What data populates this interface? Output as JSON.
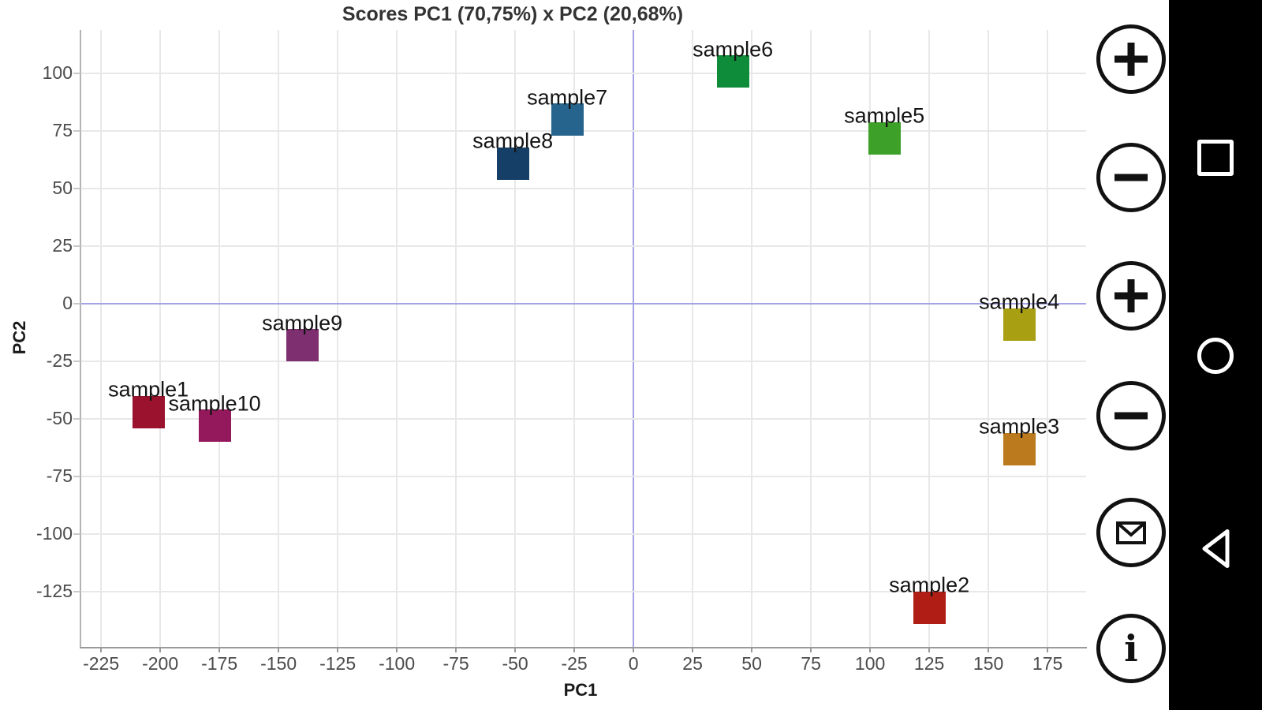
{
  "chart_data": {
    "type": "scatter",
    "title": "Scores PC1 (70,75%) x PC2 (20,68%)",
    "xlabel": "PC1",
    "ylabel": "PC2",
    "xlim": [
      -233.7,
      191.3
    ],
    "ylim": [
      -149,
      119
    ],
    "x_ticks": [
      -225,
      -200,
      -175,
      -150,
      -125,
      -100,
      -75,
      -50,
      -25,
      0,
      25,
      50,
      75,
      100,
      125,
      150,
      175
    ],
    "y_ticks": [
      100,
      75,
      50,
      25,
      0,
      -25,
      -50,
      -75,
      -100,
      -125
    ],
    "grid": true,
    "legend": "none",
    "marker": "square",
    "series": [
      {
        "name": "scores",
        "points": [
          {
            "label": "sample1",
            "x": -205,
            "y": -47,
            "color": "#9b122e"
          },
          {
            "label": "sample2",
            "x": 125,
            "y": -132,
            "color": "#b01d15"
          },
          {
            "label": "sample3",
            "x": 163,
            "y": -63,
            "color": "#bc7a1e"
          },
          {
            "label": "sample4",
            "x": 163,
            "y": -9,
            "color": "#a8a012"
          },
          {
            "label": "sample5",
            "x": 106,
            "y": 72,
            "color": "#3da029"
          },
          {
            "label": "sample6",
            "x": 42,
            "y": 101,
            "color": "#0f8c3a"
          },
          {
            "label": "sample7",
            "x": -28,
            "y": 80,
            "color": "#26648e"
          },
          {
            "label": "sample8",
            "x": -51,
            "y": 61,
            "color": "#153f66"
          },
          {
            "label": "sample9",
            "x": -140,
            "y": -18,
            "color": "#7d2f70"
          },
          {
            "label": "sample10",
            "x": -177,
            "y": -53,
            "color": "#94195c"
          }
        ]
      }
    ],
    "colors": {
      "grid": "#e8e8e8",
      "zero_line": "#a3a3e6",
      "axis": "#9a9a9a",
      "tick_text": "#4b4b4b",
      "point_label_text": "#141414"
    }
  },
  "side_toolbar": {
    "buttons": [
      {
        "icon": "zoom-in-icon"
      },
      {
        "icon": "zoom-out-icon"
      },
      {
        "icon": "zoom-in-icon"
      },
      {
        "icon": "zoom-out-icon"
      },
      {
        "icon": "email-icon"
      },
      {
        "icon": "info-icon"
      }
    ]
  },
  "nav_bar": {
    "icons": [
      "recents-square-icon",
      "home-circle-icon",
      "back-triangle-icon"
    ]
  }
}
